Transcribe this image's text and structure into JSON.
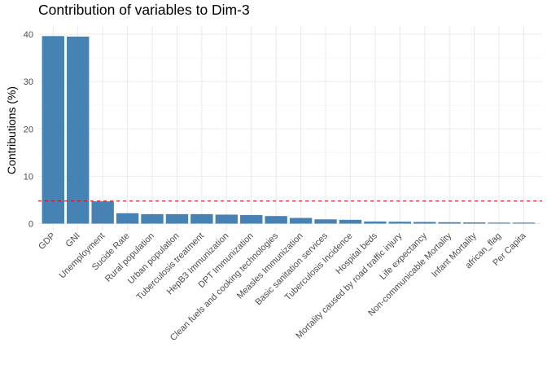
{
  "chart_data": {
    "type": "bar",
    "title": "Contribution of variables to Dim-3",
    "xlabel": "",
    "ylabel": "Contributions (%)",
    "ylim": [
      0,
      41
    ],
    "yticks": [
      0,
      10,
      20,
      30,
      40
    ],
    "categories": [
      "GDP",
      "GNI",
      "Unemployment",
      "Sucide Rate",
      "Rural population",
      "Urban population",
      "Tuberculosis treatment",
      "HepB3 Immunization",
      "DPT Immunization",
      "Clean fuels and cooking technologies",
      "Measles Immunization",
      "Basic sanitation services",
      "Tuberculosis Incidence",
      "Hospital beds",
      "Mortality caused by road traffic injury",
      "Life expectancy",
      "Non-communicable Mortality",
      "Infant Mortality",
      "african_flag",
      "Per Capita"
    ],
    "values": [
      39.6,
      39.5,
      4.7,
      2.2,
      2.0,
      2.0,
      2.0,
      1.9,
      1.8,
      1.6,
      1.2,
      0.9,
      0.8,
      0.45,
      0.4,
      0.35,
      0.3,
      0.25,
      0.2,
      0.2
    ],
    "reference_line": 4.76,
    "bar_color": "#4682B4",
    "reference_line_color": "#FF0000",
    "grid": true
  }
}
